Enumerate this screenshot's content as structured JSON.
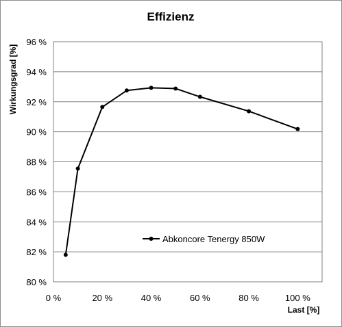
{
  "chart_data": {
    "type": "line",
    "title": "Effizienz",
    "xlabel": "Last [%]",
    "ylabel": "Wirkungsgrad [%]",
    "xlim": [
      0,
      110
    ],
    "ylim": [
      80,
      96
    ],
    "x_ticks": [
      0,
      20,
      40,
      60,
      80,
      100
    ],
    "x_tick_labels": [
      "0 %",
      "20 %",
      "40 %",
      "60 %",
      "80 %",
      "100 %"
    ],
    "y_ticks": [
      80,
      82,
      84,
      86,
      88,
      90,
      92,
      94,
      96
    ],
    "y_tick_labels": [
      "80 %",
      "82 %",
      "84 %",
      "86 %",
      "88 %",
      "90 %",
      "92 %",
      "94 %",
      "96 %"
    ],
    "grid": "horizontal",
    "legend_position": "center-right",
    "series": [
      {
        "name": "Abkoncore Tenergy 850W",
        "color": "#000000",
        "x": [
          5,
          10,
          20,
          30,
          40,
          50,
          60,
          80,
          100
        ],
        "y": [
          81.8,
          87.55,
          91.65,
          92.75,
          92.93,
          92.88,
          92.33,
          91.37,
          90.18
        ]
      }
    ]
  }
}
